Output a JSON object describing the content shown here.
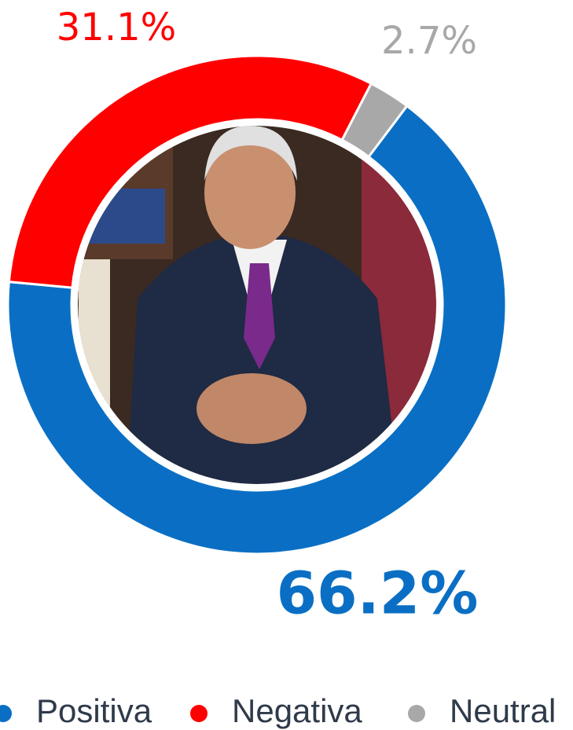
{
  "chart_data": {
    "type": "pie",
    "donut": true,
    "categories": [
      "Positiva",
      "Negativa",
      "Neutral"
    ],
    "values": [
      66.2,
      31.1,
      2.7
    ],
    "value_labels": [
      "66.2%",
      "31.1%",
      "2.7%"
    ],
    "colors": [
      "#0a6fc4",
      "#ff0000",
      "#a8a8a8"
    ],
    "legend": "bottom"
  }
}
